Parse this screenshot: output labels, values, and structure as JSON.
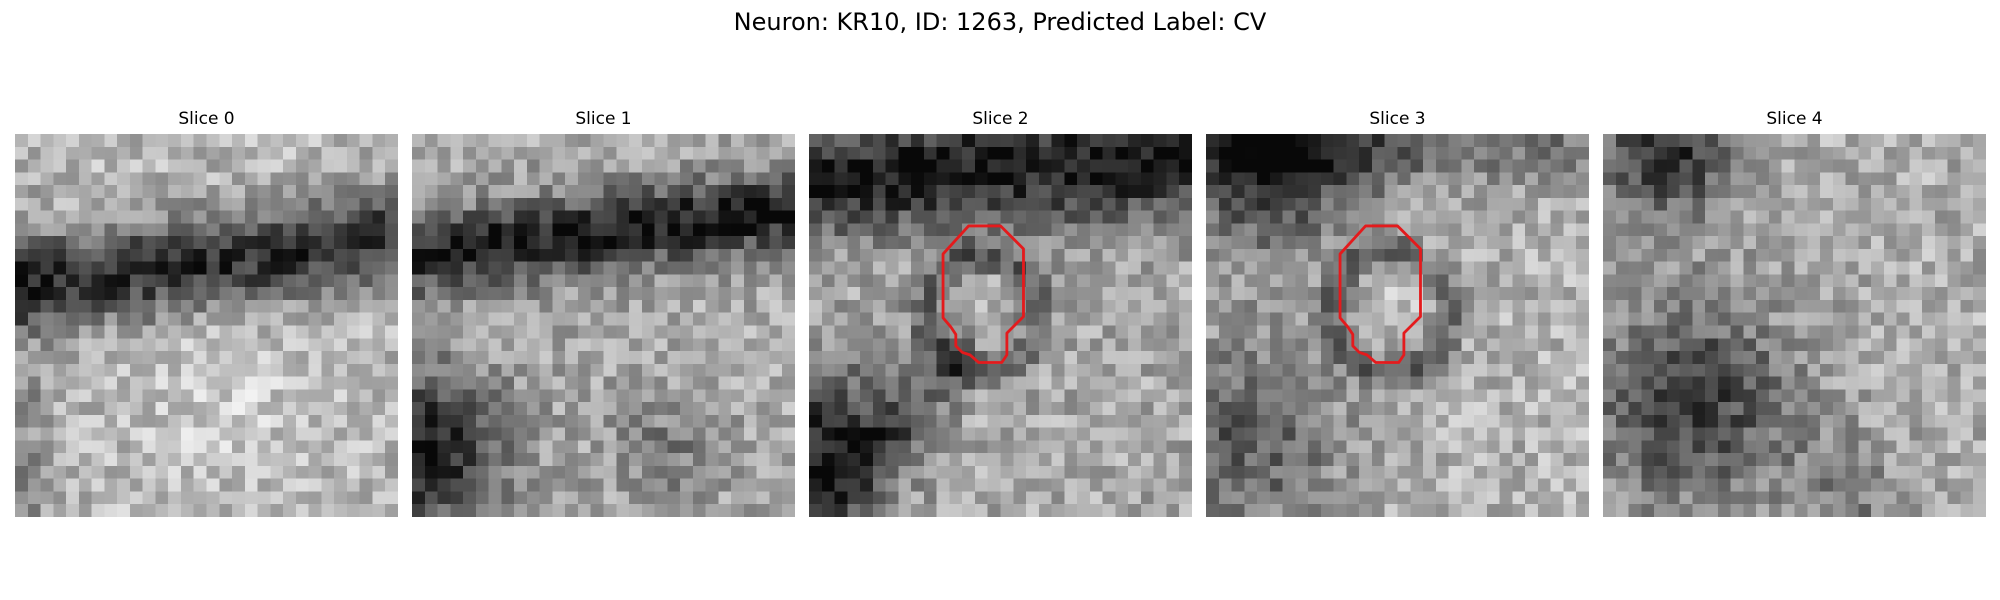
{
  "figure": {
    "title": "Neuron: KR10, ID: 1263, Predicted Label: CV"
  },
  "panels": [
    {
      "title": "Slice 0",
      "image_desc": "Grayscale electron-microscopy patch; dark diagonal band across upper-middle, lighter textured tissue below.",
      "show_contour": false
    },
    {
      "title": "Slice 1",
      "image_desc": "Grayscale patch with dark membrane band along top and dark region at lower-left.",
      "show_contour": false
    },
    {
      "title": "Slice 2",
      "image_desc": "Grayscale patch with dark top band, dark curved region lower-left, central round vesicle outlined in red.",
      "show_contour": true
    },
    {
      "title": "Slice 3",
      "image_desc": "Grayscale patch, dark upper-left corner, lighter band, central round vesicle outlined in red, darker bottom-left.",
      "show_contour": true
    },
    {
      "title": "Slice 4",
      "image_desc": "Grayscale noisy patch with dark upper-left corner and dark textured region lower-left.",
      "show_contour": false
    }
  ],
  "contour_color": "#e41a1c",
  "colormap": "gray"
}
